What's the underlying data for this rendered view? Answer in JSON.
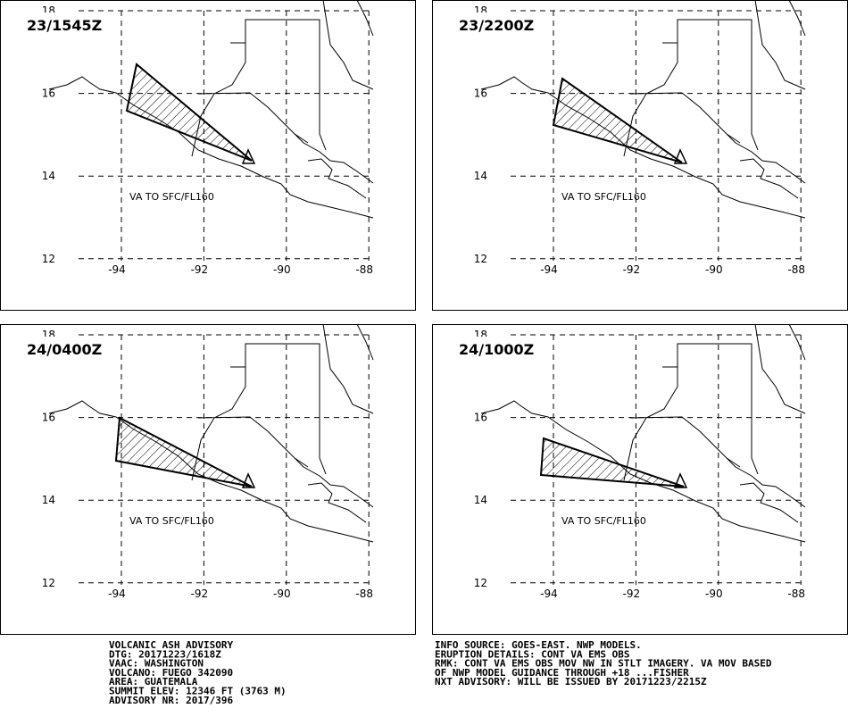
{
  "panels": [
    {
      "title": "23/1545Z",
      "label": "VA TO SFC/FL160",
      "lat_ticks": [
        18,
        16,
        14,
        12
      ],
      "lon_ticks": [
        -94,
        -92,
        -90,
        -88
      ]
    },
    {
      "title": "23/2200Z",
      "label": "VA TO SFC/FL160",
      "lat_ticks": [
        18,
        16,
        14,
        12
      ],
      "lon_ticks": [
        -94,
        -92,
        -90,
        -88
      ]
    },
    {
      "title": "24/0400Z",
      "label": "VA TO SFC/FL160",
      "lat_ticks": [
        18,
        16,
        14,
        12
      ],
      "lon_ticks": [
        -94,
        -92,
        -90,
        -88
      ]
    },
    {
      "title": "24/1000Z",
      "label": "VA TO SFC/FL160",
      "lat_ticks": [
        18,
        16,
        14,
        12
      ],
      "lon_ticks": [
        -94,
        -92,
        -90,
        -88
      ]
    }
  ],
  "advisory_left": [
    "VOLCANIC ASH ADVISORY",
    "DTG: 20171223/1618Z",
    "VAAC: WASHINGTON",
    "VOLCANO: FUEGO 342090",
    "AREA: GUATEMALA",
    "SUMMIT ELEV: 12346 FT (3763 M)",
    "ADVISORY NR: 2017/396"
  ],
  "advisory_right": [
    "INFO SOURCE: GOES-EAST. NWP MODELS.",
    "ERUPTION DETAILS: CONT VA EMS OBS",
    "RMK: CONT VA EMS OBS MOV NW IN STLT IMAGERY. VA MOV BASED",
    "OF NWP MODEL GUIDANCE THROUGH +18 ...FISHER",
    "NXT ADVISORY: WILL BE ISSUED BY 20171223/2215Z"
  ]
}
